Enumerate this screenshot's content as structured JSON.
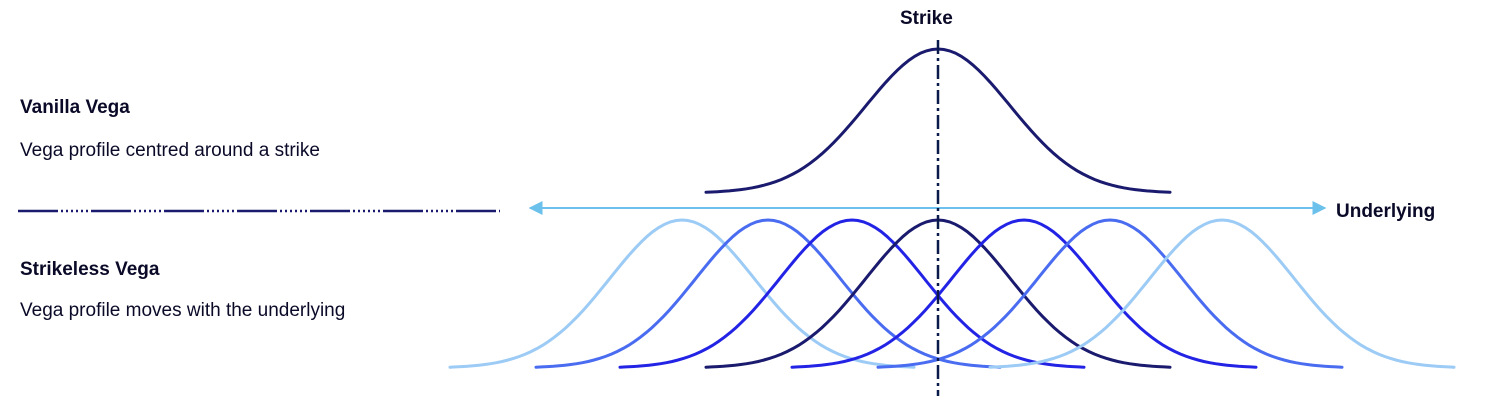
{
  "vanilla": {
    "title": "Vanilla Vega",
    "description": "Vega profile centred around a strike"
  },
  "strikeless": {
    "title": "Strikeless Vega",
    "description": "Vega profile moves with the underlying"
  },
  "labels": {
    "strike": "Strike",
    "underlying": "Underlying"
  },
  "colors": {
    "dark_navy": "#1a1a6e",
    "royal_blue": "#2323e6",
    "medium_blue": "#4a6cf0",
    "light_blue": "#9ccbf5",
    "axis": "#6cc0ec",
    "text": "#0a0a28"
  },
  "curves": {
    "vanilla_color": "dark_navy",
    "strikeless_colors": [
      "light_blue",
      "medium_blue",
      "royal_blue",
      "dark_navy",
      "royal_blue",
      "medium_blue",
      "light_blue"
    ]
  }
}
